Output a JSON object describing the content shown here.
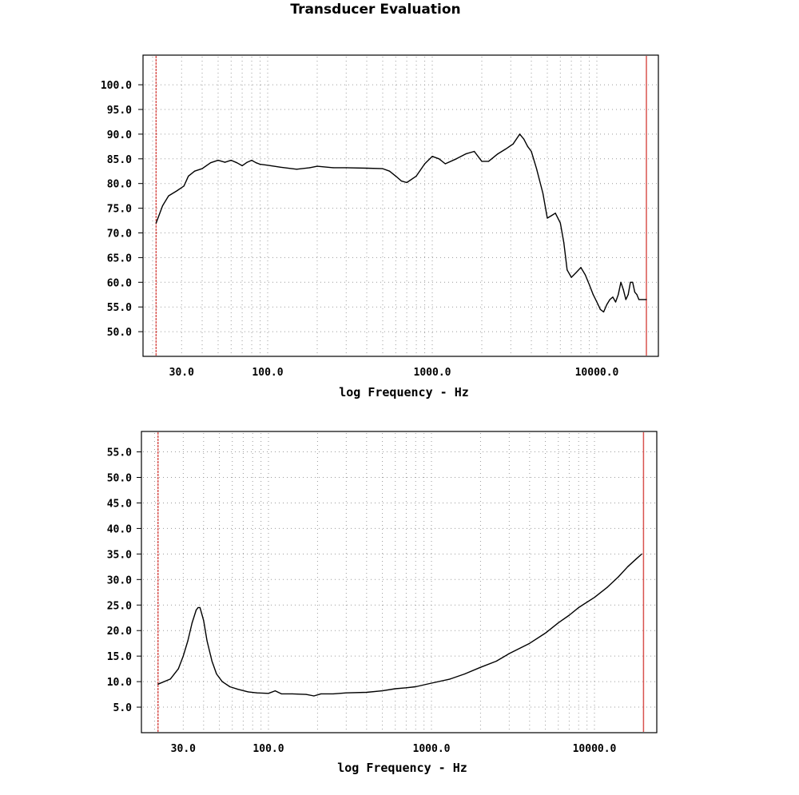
{
  "title": "Transducer Evaluation",
  "colors": {
    "curve": "#000000",
    "marker": "#d9534f",
    "grid": "#9a9a9a",
    "frame": "#000000"
  },
  "chart_data": [
    {
      "type": "line",
      "name": "frequency-response",
      "title": "Transducer Evaluation",
      "xlabel": "log Frequency - Hz",
      "ylabel": "",
      "xscale": "log",
      "xlim": [
        20,
        22000
      ],
      "ylim": [
        45,
        106
      ],
      "xticks": [
        30,
        100,
        1000,
        10000
      ],
      "xtick_labels": [
        "30.0",
        "100.0",
        "1000.0",
        "10000.0"
      ],
      "yticks": [
        50,
        55,
        60,
        65,
        70,
        75,
        80,
        85,
        90,
        95,
        100
      ],
      "ytick_labels": [
        "50.0",
        "55.0",
        "60.0",
        "65.0",
        "70.0",
        "75.0",
        "80.0",
        "85.0",
        "90.0",
        "95.0",
        "100.0"
      ],
      "markers": [
        21,
        20000
      ],
      "grid": true,
      "x": [
        21,
        23,
        25,
        28,
        31,
        33,
        36,
        40,
        45,
        50,
        55,
        60,
        65,
        70,
        75,
        80,
        85,
        90,
        100,
        120,
        150,
        180,
        200,
        250,
        300,
        400,
        500,
        550,
        600,
        650,
        700,
        800,
        900,
        1000,
        1100,
        1200,
        1400,
        1600,
        1800,
        2000,
        2200,
        2500,
        2800,
        3100,
        3400,
        3600,
        3800,
        4000,
        4300,
        4700,
        5000,
        5300,
        5600,
        6000,
        6300,
        6600,
        7000,
        7500,
        8000,
        8500,
        9000,
        9500,
        10000,
        10500,
        11000,
        11500,
        12000,
        12500,
        13000,
        13500,
        14000,
        14500,
        15000,
        15500,
        16000,
        16500,
        17000,
        17500,
        18000,
        18500,
        19000,
        19500,
        20000
      ],
      "y": [
        72,
        75.5,
        77.5,
        78.5,
        79.5,
        81.5,
        82.5,
        83,
        84.2,
        84.7,
        84.3,
        84.7,
        84.2,
        83.6,
        84.3,
        84.7,
        84.2,
        83.9,
        83.7,
        83.3,
        82.9,
        83.2,
        83.5,
        83.2,
        83.2,
        83.1,
        83.0,
        82.5,
        81.5,
        80.5,
        80.2,
        81.5,
        84,
        85.5,
        85.0,
        84.0,
        85.0,
        86.0,
        86.5,
        84.5,
        84.5,
        86.0,
        87.0,
        88.0,
        90.0,
        89.0,
        87.5,
        86.5,
        83.0,
        78.0,
        73.0,
        73.5,
        74.0,
        72.0,
        68.0,
        62.5,
        61.0,
        62.0,
        63.0,
        61.5,
        59.5,
        57.5,
        56.0,
        54.5,
        54.0,
        55.5,
        56.5,
        57.0,
        56.0,
        57.5,
        60.0,
        58.5,
        56.5,
        57.5,
        60.0,
        60.0,
        58.0,
        57.5,
        56.5,
        56.5,
        56.5,
        56.5,
        56.5
      ]
    },
    {
      "type": "line",
      "name": "impedance",
      "title": "",
      "xlabel": "log Frequency - Hz",
      "ylabel": "",
      "xscale": "log",
      "xlim": [
        20,
        22000
      ],
      "ylim": [
        0,
        59
      ],
      "xticks": [
        30,
        100,
        1000,
        10000
      ],
      "xtick_labels": [
        "30.0",
        "100.0",
        "1000.0",
        "10000.0"
      ],
      "yticks": [
        5,
        10,
        15,
        20,
        25,
        30,
        35,
        40,
        45,
        50,
        55
      ],
      "ytick_labels": [
        "5.0",
        "10.0",
        "15.0",
        "20.0",
        "25.0",
        "30.0",
        "35.0",
        "40.0",
        "45.0",
        "50.0",
        "55.0"
      ],
      "markers": [
        21,
        20000
      ],
      "grid": true,
      "x": [
        21,
        25,
        28,
        30,
        32,
        34,
        36,
        37,
        38,
        40,
        42,
        45,
        48,
        52,
        58,
        65,
        75,
        85,
        100,
        110,
        120,
        140,
        170,
        190,
        210,
        250,
        300,
        400,
        500,
        600,
        700,
        800,
        1000,
        1300,
        1600,
        2000,
        2500,
        3000,
        4000,
        5000,
        6000,
        7000,
        8000,
        10000,
        12000,
        14000,
        16000,
        18000,
        19500
      ],
      "y": [
        9.5,
        10.5,
        12.5,
        15,
        18,
        21.5,
        24,
        24.5,
        24.5,
        22,
        18,
        14,
        11.5,
        10,
        9,
        8.5,
        8,
        7.8,
        7.7,
        8.2,
        7.6,
        7.6,
        7.5,
        7.2,
        7.6,
        7.6,
        7.8,
        7.9,
        8.2,
        8.6,
        8.8,
        9.0,
        9.7,
        10.5,
        11.5,
        12.8,
        14.0,
        15.5,
        17.5,
        19.5,
        21.5,
        23.0,
        24.5,
        26.5,
        28.5,
        30.5,
        32.5,
        34.0,
        35.0
      ]
    }
  ]
}
